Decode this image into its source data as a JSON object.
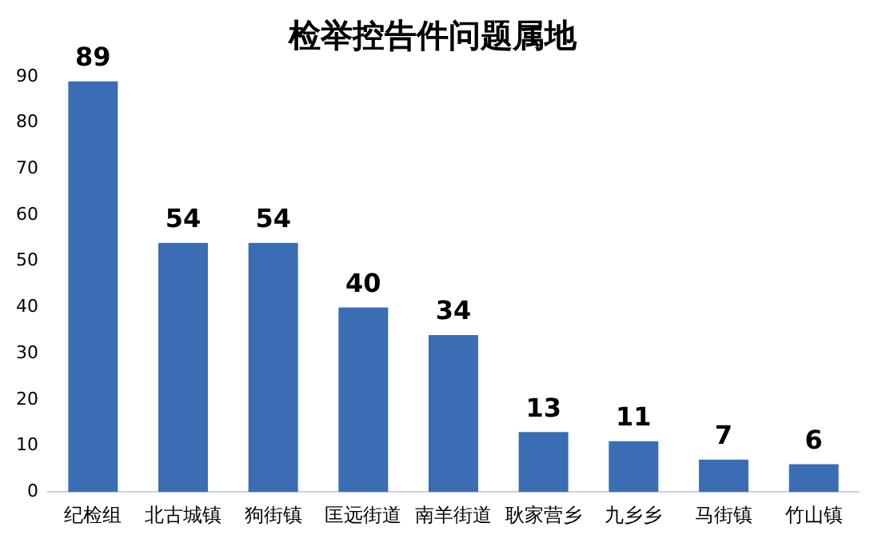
{
  "chart_data": {
    "type": "bar",
    "title": "检举控告件问题属地",
    "categories": [
      "纪检组",
      "北古城镇",
      "狗街镇",
      "匡远街道",
      "南羊街道",
      "耿家营乡",
      "九乡乡",
      "马街镇",
      "竹山镇"
    ],
    "values": [
      89,
      54,
      54,
      40,
      34,
      13,
      11,
      7,
      6
    ],
    "color": "#3a6db3",
    "ylim": [
      0,
      90
    ],
    "yticks": [
      0,
      10,
      20,
      30,
      40,
      50,
      60,
      70,
      80,
      90
    ],
    "grid": false,
    "data_labels": true,
    "legend": false
  }
}
